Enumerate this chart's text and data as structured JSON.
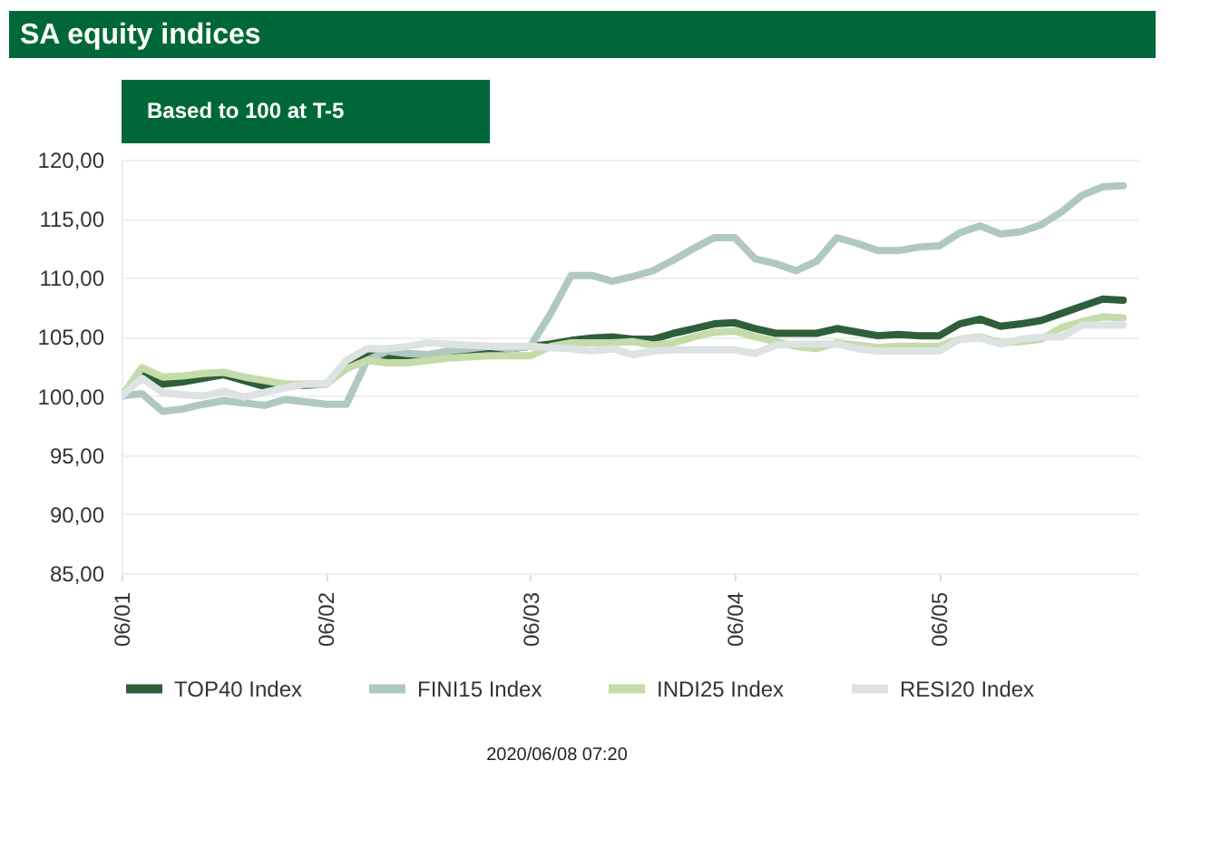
{
  "chart_data": {
    "type": "line",
    "title": "SA equity indices",
    "subtitle": "Based to 100 at T-5",
    "categories": [
      "06/01",
      null,
      null,
      null,
      null,
      null,
      null,
      null,
      null,
      null,
      "06/02",
      null,
      null,
      null,
      null,
      null,
      null,
      null,
      null,
      null,
      "06/03",
      null,
      null,
      null,
      null,
      null,
      null,
      null,
      null,
      null,
      "06/04",
      null,
      null,
      null,
      null,
      null,
      null,
      null,
      null,
      null,
      "06/05",
      null,
      null,
      null,
      null,
      null,
      null,
      null,
      null,
      null
    ],
    "series": [
      {
        "name": "TOP40 Index",
        "color": "#2e5e3a",
        "values": [
          100,
          102,
          101,
          101.2,
          101.5,
          101.8,
          101.3,
          100.8,
          100.9,
          100.9,
          101,
          102.5,
          103.4,
          103.4,
          103.3,
          103.5,
          103.6,
          103.8,
          103.9,
          104,
          104.2,
          104.4,
          104.7,
          104.9,
          105,
          104.8,
          104.8,
          105.3,
          105.7,
          106.1,
          106.2,
          105.7,
          105.3,
          105.3,
          105.3,
          105.7,
          105.4,
          105.1,
          105.2,
          105.1,
          105.1,
          106.1,
          106.5,
          105.9,
          106.1,
          106.4,
          107,
          107.6,
          108.2,
          108.1
        ]
      },
      {
        "name": "FINI15 Index",
        "color": "#b0c9c0",
        "values": [
          100,
          100.2,
          98.7,
          98.9,
          99.3,
          99.6,
          99.4,
          99.2,
          99.7,
          99.5,
          99.3,
          99.3,
          103,
          103.8,
          103.6,
          103.5,
          103.8,
          104,
          104.2,
          104,
          104.2,
          107,
          110.2,
          110.2,
          109.7,
          110.1,
          110.6,
          111.5,
          112.5,
          113.4,
          113.4,
          111.6,
          111.2,
          110.6,
          111.4,
          113.4,
          112.9,
          112.3,
          112.3,
          112.6,
          112.7,
          113.8,
          114.4,
          113.7,
          113.9,
          114.5,
          115.6,
          117,
          117.7,
          117.8
        ]
      },
      {
        "name": "INDI25 Index",
        "color": "#c5dba9",
        "values": [
          100,
          102.4,
          101.6,
          101.7,
          101.9,
          102,
          101.6,
          101.3,
          101,
          101,
          101,
          102.3,
          103,
          102.8,
          102.8,
          103,
          103.2,
          103.3,
          103.4,
          103.4,
          103.4,
          104.2,
          104.5,
          104.5,
          104.5,
          104.6,
          104.3,
          104.5,
          105,
          105.4,
          105.5,
          105,
          104.6,
          104.2,
          104,
          104.5,
          104.3,
          104.1,
          104.2,
          104.2,
          104.2,
          104.8,
          105,
          104.5,
          104.6,
          104.8,
          105.8,
          106.3,
          106.7,
          106.6
        ]
      },
      {
        "name": "RESI20 Index",
        "color": "#dde2e3",
        "values": [
          100,
          101.5,
          100.3,
          100.1,
          100,
          100.4,
          99.9,
          100.3,
          100.7,
          101,
          101,
          103,
          104,
          104,
          104.2,
          104.5,
          104.4,
          104.3,
          104.2,
          104.2,
          104.2,
          104.1,
          104,
          103.8,
          104,
          103.5,
          103.8,
          103.9,
          103.9,
          103.9,
          103.9,
          103.6,
          104.3,
          104.4,
          104.4,
          104.4,
          104,
          103.8,
          103.8,
          103.8,
          103.8,
          104.8,
          104.9,
          104.4,
          104.8,
          105,
          105,
          106,
          106,
          106
        ]
      }
    ],
    "ylim": [
      85,
      120
    ],
    "yticks": [
      {
        "value": 85,
        "label": "85,00"
      },
      {
        "value": 90,
        "label": "90,00"
      },
      {
        "value": 95,
        "label": "95,00"
      },
      {
        "value": 100,
        "label": "100,00"
      },
      {
        "value": 105,
        "label": "105,00"
      },
      {
        "value": 110,
        "label": "110,00"
      },
      {
        "value": 115,
        "label": "115,00"
      },
      {
        "value": 120,
        "label": "120,00"
      }
    ],
    "grid": "y",
    "legend": "bottom",
    "marker": "none",
    "line_style": "solid",
    "annotations": [
      "2020/06/08 07:20"
    ]
  }
}
